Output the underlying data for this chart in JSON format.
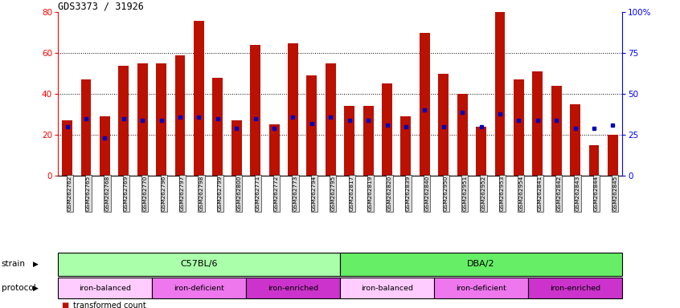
{
  "title": "GDS3373 / 31926",
  "samples": [
    "GSM262762",
    "GSM262765",
    "GSM262768",
    "GSM262769",
    "GSM262770",
    "GSM262796",
    "GSM262797",
    "GSM262798",
    "GSM262799",
    "GSM262800",
    "GSM262771",
    "GSM262772",
    "GSM262773",
    "GSM262794",
    "GSM262795",
    "GSM262817",
    "GSM262819",
    "GSM262820",
    "GSM262839",
    "GSM262840",
    "GSM262950",
    "GSM262951",
    "GSM262952",
    "GSM262953",
    "GSM262954",
    "GSM262841",
    "GSM262842",
    "GSM262843",
    "GSM262844",
    "GSM262845"
  ],
  "bar_values": [
    27,
    47,
    29,
    54,
    55,
    55,
    59,
    76,
    48,
    27,
    64,
    25,
    65,
    49,
    55,
    34,
    34,
    45,
    29,
    70,
    50,
    40,
    24,
    80,
    47,
    51,
    44,
    35,
    15,
    20
  ],
  "dot_values_pct": [
    30,
    35,
    23,
    35,
    34,
    34,
    36,
    36,
    35,
    29,
    35,
    29,
    36,
    32,
    36,
    34,
    34,
    31,
    30,
    40,
    30,
    39,
    30,
    38,
    34,
    34,
    34,
    29,
    29,
    31
  ],
  "bar_color": "#bb1100",
  "dot_color": "#0000bb",
  "ylim_left": [
    0,
    80
  ],
  "ylim_right": [
    0,
    100
  ],
  "yticks_left": [
    0,
    20,
    40,
    60,
    80
  ],
  "yticks_right": [
    0,
    25,
    50,
    75,
    100
  ],
  "ytick_labels_right": [
    "0",
    "25",
    "50",
    "75",
    "100%"
  ],
  "strain_groups": [
    {
      "label": "C57BL/6",
      "start": 0,
      "end": 15,
      "color": "#aaffaa"
    },
    {
      "label": "DBA/2",
      "start": 15,
      "end": 30,
      "color": "#66ee66"
    }
  ],
  "protocol_groups": [
    {
      "label": "iron-balanced",
      "start": 0,
      "end": 5,
      "color": "#ffccff"
    },
    {
      "label": "iron-deficient",
      "start": 5,
      "end": 10,
      "color": "#ee77ee"
    },
    {
      "label": "iron-enriched",
      "start": 10,
      "end": 15,
      "color": "#cc33cc"
    },
    {
      "label": "iron-balanced",
      "start": 15,
      "end": 20,
      "color": "#ffccff"
    },
    {
      "label": "iron-deficient",
      "start": 20,
      "end": 25,
      "color": "#ee77ee"
    },
    {
      "label": "iron-enriched",
      "start": 25,
      "end": 30,
      "color": "#cc33cc"
    }
  ],
  "bar_width": 0.55,
  "background_color": "#ffffff",
  "xtick_bg": "#dddddd"
}
